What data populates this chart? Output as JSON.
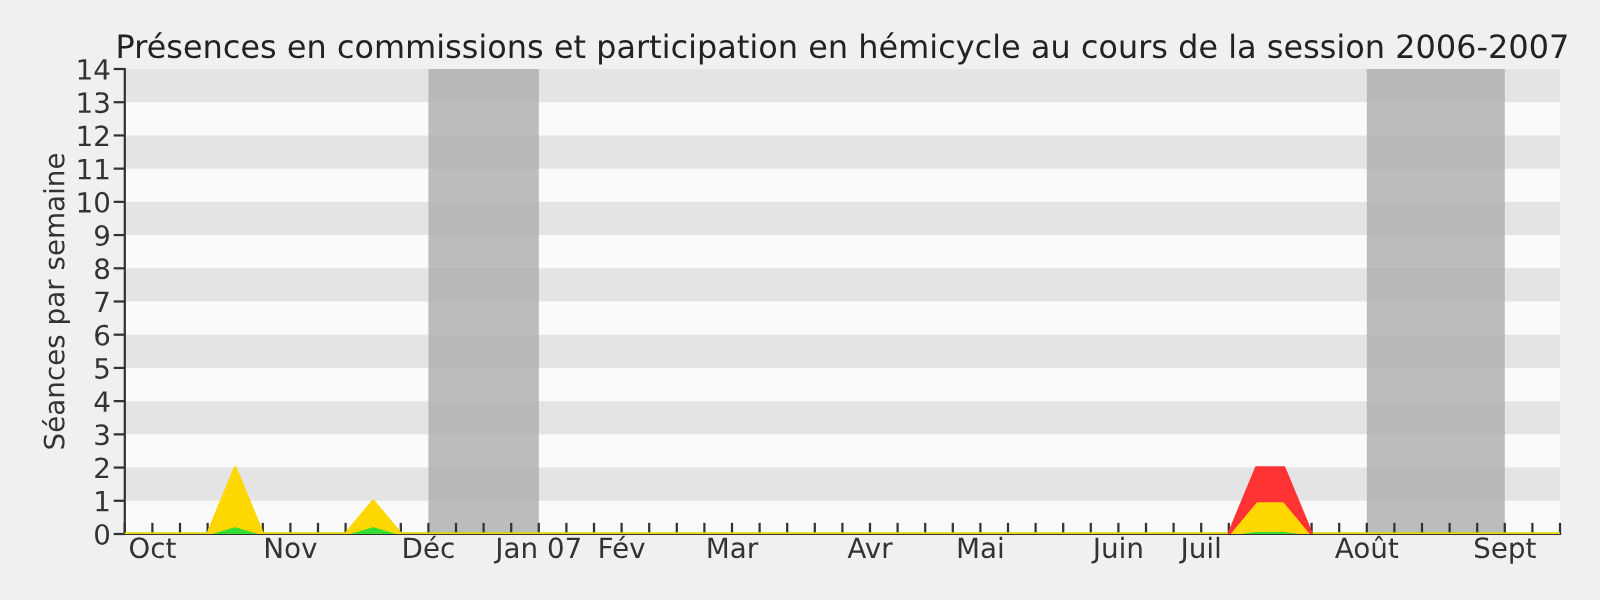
{
  "chart_data": {
    "type": "area",
    "stacked": true,
    "title": "Présences en commissions et participation en hémicycle au cours de la session 2006-2007",
    "ylabel": "Séances par semaine",
    "categories": [
      null,
      "Oct",
      null,
      null,
      null,
      null,
      "Nov",
      null,
      null,
      null,
      null,
      "Déc",
      null,
      null,
      null,
      "Jan 07",
      null,
      null,
      "Fév",
      null,
      null,
      null,
      "Mar",
      null,
      null,
      null,
      null,
      "Avr",
      null,
      null,
      null,
      "Mai",
      null,
      null,
      null,
      null,
      "Juin",
      null,
      null,
      "Juil",
      null,
      null,
      null,
      null,
      null,
      "Août",
      null,
      null,
      null,
      null,
      "Sept",
      null,
      null
    ],
    "series": [
      {
        "color": "#33dd33",
        "values": [
          0,
          0,
          0,
          0,
          0.25,
          0,
          0,
          0,
          0,
          0.25,
          0,
          0,
          0,
          0,
          0,
          0,
          0,
          0,
          0,
          0,
          0,
          0,
          0,
          0,
          0,
          0,
          0,
          0,
          0,
          0,
          0,
          0,
          0,
          0,
          0,
          0,
          0,
          0,
          0,
          0,
          0,
          0.1,
          0.1,
          0,
          0,
          0,
          0,
          0,
          0,
          0,
          0,
          0,
          0
        ]
      },
      {
        "color": "#ffd700",
        "values": [
          0,
          0,
          0,
          0,
          1.75,
          0,
          0,
          0,
          0,
          0.75,
          0,
          0,
          0,
          0,
          0,
          0,
          0,
          0,
          0,
          0,
          0,
          0,
          0,
          0,
          0,
          0,
          0,
          0,
          0,
          0,
          0,
          0,
          0,
          0,
          0,
          0,
          0,
          0,
          0,
          0,
          0,
          0.9,
          0.9,
          0,
          0,
          0,
          0,
          0,
          0,
          0,
          0,
          0,
          0
        ]
      },
      {
        "color": "#ff3333",
        "values": [
          null,
          null,
          null,
          null,
          null,
          null,
          null,
          null,
          null,
          null,
          null,
          null,
          null,
          null,
          null,
          null,
          null,
          null,
          null,
          null,
          null,
          null,
          null,
          null,
          null,
          null,
          null,
          null,
          null,
          null,
          null,
          null,
          null,
          null,
          null,
          null,
          null,
          null,
          null,
          null,
          0,
          1,
          1,
          0,
          null,
          null,
          null,
          null,
          null,
          null,
          null,
          null,
          null
        ]
      }
    ],
    "bands": [
      {
        "axis": "x",
        "from": "Déc",
        "to": "Jan 07",
        "color": "#b0b0b0"
      },
      {
        "axis": "x",
        "from": "Août",
        "to": "Sept",
        "color": "#b0b0b0"
      }
    ],
    "ylim": [
      0,
      14
    ],
    "yticks": [
      0,
      1,
      2,
      3,
      4,
      5,
      6,
      7,
      8,
      9,
      10,
      11,
      12,
      13,
      14
    ]
  }
}
